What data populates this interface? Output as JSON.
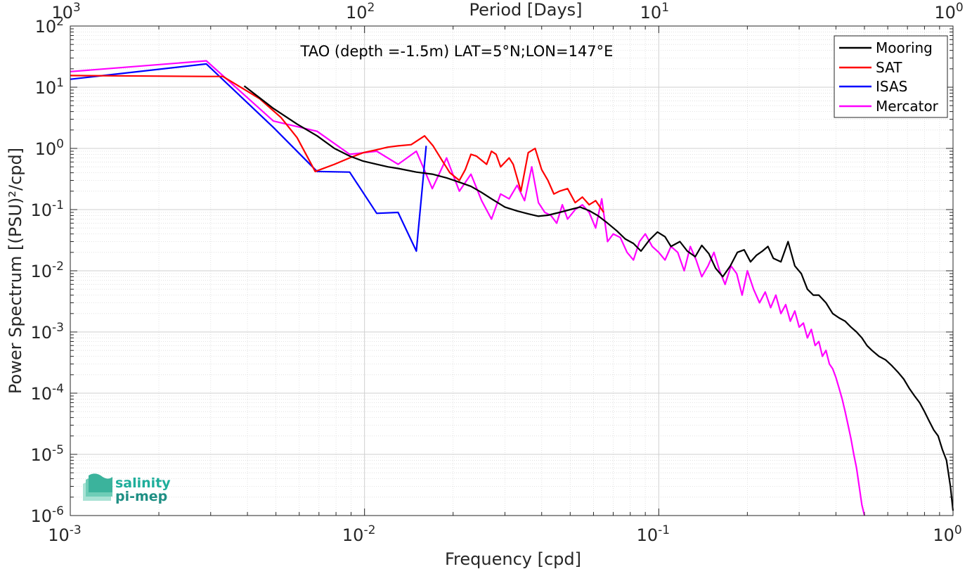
{
  "chart_data": {
    "type": "line",
    "title": "TAO (depth =-1.5m) LAT=5°N;LON=147°E",
    "xlabel": "Frequency [cpd]",
    "ylabel": "Power Spectrum [(PSU)²/cpd]",
    "x2label": "Period [Days]",
    "xscale": "log",
    "yscale": "log",
    "xlim": [
      0.001,
      1
    ],
    "ylim": [
      1e-06,
      100
    ],
    "grid": true,
    "legend_position": "top-right",
    "x_ticks": [
      {
        "value": 0.001,
        "base": "10",
        "exp": "-3"
      },
      {
        "value": 0.01,
        "base": "10",
        "exp": "-2"
      },
      {
        "value": 0.1,
        "base": "10",
        "exp": "-1"
      },
      {
        "value": 1,
        "base": "10",
        "exp": "0"
      }
    ],
    "x2_ticks": [
      {
        "value": 0.001,
        "base": "10",
        "exp": "3"
      },
      {
        "value": 0.01,
        "base": "10",
        "exp": "2"
      },
      {
        "value": 0.1,
        "base": "10",
        "exp": "1"
      },
      {
        "value": 1,
        "base": "10",
        "exp": "0"
      }
    ],
    "y_ticks": [
      {
        "value": 100,
        "base": "10",
        "exp": "2"
      },
      {
        "value": 10,
        "base": "10",
        "exp": "1"
      },
      {
        "value": 1,
        "base": "10",
        "exp": "0"
      },
      {
        "value": 0.1,
        "base": "10",
        "exp": "-1"
      },
      {
        "value": 0.01,
        "base": "10",
        "exp": "-2"
      },
      {
        "value": 0.001,
        "base": "10",
        "exp": "-3"
      },
      {
        "value": 0.0001,
        "base": "10",
        "exp": "-4"
      },
      {
        "value": 1e-05,
        "base": "10",
        "exp": "-5"
      },
      {
        "value": 1e-06,
        "base": "10",
        "exp": "-6"
      }
    ],
    "series": [
      {
        "name": "Mooring",
        "color": "#000000",
        "x": [
          0.0039,
          0.0049,
          0.0059,
          0.0069,
          0.0079,
          0.0089,
          0.0099,
          0.011,
          0.012,
          0.013,
          0.015,
          0.017,
          0.019,
          0.021,
          0.023,
          0.025,
          0.027,
          0.03,
          0.033,
          0.036,
          0.039,
          0.042,
          0.046,
          0.05,
          0.054,
          0.058,
          0.062,
          0.067,
          0.072,
          0.077,
          0.082,
          0.087,
          0.093,
          0.099,
          0.105,
          0.11,
          0.118,
          0.125,
          0.133,
          0.14,
          0.148,
          0.156,
          0.165,
          0.175,
          0.185,
          0.195,
          0.205,
          0.215,
          0.225,
          0.235,
          0.245,
          0.26,
          0.275,
          0.29,
          0.305,
          0.32,
          0.335,
          0.35,
          0.37,
          0.39,
          0.41,
          0.43,
          0.45,
          0.47,
          0.49,
          0.51,
          0.53,
          0.56,
          0.59,
          0.62,
          0.65,
          0.68,
          0.71,
          0.74,
          0.77,
          0.8,
          0.83,
          0.86,
          0.89,
          0.92,
          0.95,
          0.98,
          1.0
        ],
        "y": [
          10.5,
          4.5,
          2.5,
          1.6,
          1.0,
          0.75,
          0.62,
          0.55,
          0.5,
          0.47,
          0.41,
          0.38,
          0.33,
          0.28,
          0.24,
          0.19,
          0.15,
          0.11,
          0.095,
          0.085,
          0.078,
          0.081,
          0.09,
          0.1,
          0.11,
          0.096,
          0.08,
          0.06,
          0.045,
          0.033,
          0.028,
          0.021,
          0.032,
          0.043,
          0.036,
          0.025,
          0.03,
          0.021,
          0.017,
          0.026,
          0.019,
          0.011,
          0.008,
          0.012,
          0.02,
          0.022,
          0.014,
          0.018,
          0.021,
          0.025,
          0.016,
          0.014,
          0.03,
          0.012,
          0.009,
          0.005,
          0.004,
          0.004,
          0.003,
          0.002,
          0.0017,
          0.0015,
          0.0012,
          0.001,
          0.0008,
          0.0006,
          0.0005,
          0.0004,
          0.00035,
          0.00028,
          0.00022,
          0.00017,
          0.00012,
          9e-05,
          7e-05,
          5e-05,
          3.5e-05,
          2.5e-05,
          2e-05,
          1.2e-05,
          8e-06,
          3e-06,
          1.2e-06
        ]
      },
      {
        "name": "SAT",
        "color": "#ff0000",
        "x": [
          0.001,
          0.0029,
          0.0033,
          0.0044,
          0.0052,
          0.0059,
          0.0068,
          0.0079,
          0.0089,
          0.0099,
          0.011,
          0.012,
          0.013,
          0.0144,
          0.016,
          0.0171,
          0.0183,
          0.0195,
          0.021,
          0.022,
          0.023,
          0.024,
          0.026,
          0.027,
          0.028,
          0.029,
          0.031,
          0.032,
          0.034,
          0.036,
          0.038,
          0.04,
          0.042,
          0.044,
          0.046,
          0.049,
          0.052,
          0.055,
          0.058,
          0.061,
          0.065
        ],
        "y": [
          15.5,
          15.0,
          15.0,
          6.5,
          3.2,
          1.5,
          0.42,
          0.55,
          0.7,
          0.85,
          0.95,
          1.05,
          1.1,
          1.15,
          1.6,
          1.1,
          0.65,
          0.4,
          0.3,
          0.45,
          0.8,
          0.75,
          0.55,
          0.9,
          0.8,
          0.5,
          0.7,
          0.55,
          0.2,
          0.85,
          1.0,
          0.45,
          0.3,
          0.18,
          0.2,
          0.22,
          0.13,
          0.16,
          0.12,
          0.14,
          0.09
        ]
      },
      {
        "name": "ISAS",
        "color": "#0000ff",
        "x": [
          0.001,
          0.0029,
          0.0049,
          0.0069,
          0.0089,
          0.011,
          0.013,
          0.015,
          0.0162
        ],
        "y": [
          13.5,
          24.0,
          2.2,
          0.42,
          0.41,
          0.087,
          0.09,
          0.021,
          1.1
        ]
      },
      {
        "name": "Mercator",
        "color": "#ff00ff",
        "x": [
          0.001,
          0.0029,
          0.0049,
          0.0069,
          0.0089,
          0.011,
          0.013,
          0.015,
          0.017,
          0.019,
          0.021,
          0.023,
          0.025,
          0.027,
          0.029,
          0.031,
          0.033,
          0.035,
          0.037,
          0.039,
          0.041,
          0.043,
          0.045,
          0.047,
          0.049,
          0.052,
          0.055,
          0.058,
          0.061,
          0.064,
          0.067,
          0.07,
          0.074,
          0.078,
          0.082,
          0.086,
          0.09,
          0.095,
          0.1,
          0.105,
          0.11,
          0.116,
          0.122,
          0.128,
          0.134,
          0.14,
          0.147,
          0.154,
          0.161,
          0.168,
          0.176,
          0.184,
          0.192,
          0.2,
          0.21,
          0.22,
          0.23,
          0.24,
          0.25,
          0.26,
          0.27,
          0.28,
          0.29,
          0.3,
          0.31,
          0.32,
          0.33,
          0.34,
          0.35,
          0.36,
          0.37,
          0.38,
          0.39,
          0.4,
          0.41,
          0.42,
          0.43,
          0.44,
          0.45,
          0.46,
          0.47,
          0.48,
          0.49,
          0.5
        ],
        "y": [
          18.0,
          27.0,
          2.8,
          1.9,
          0.8,
          0.9,
          0.55,
          0.9,
          0.22,
          0.7,
          0.2,
          0.38,
          0.14,
          0.07,
          0.18,
          0.15,
          0.25,
          0.14,
          0.5,
          0.13,
          0.09,
          0.08,
          0.06,
          0.12,
          0.07,
          0.1,
          0.12,
          0.09,
          0.05,
          0.15,
          0.03,
          0.04,
          0.035,
          0.02,
          0.015,
          0.03,
          0.04,
          0.025,
          0.02,
          0.015,
          0.025,
          0.02,
          0.01,
          0.025,
          0.015,
          0.008,
          0.012,
          0.02,
          0.01,
          0.006,
          0.012,
          0.009,
          0.004,
          0.01,
          0.005,
          0.003,
          0.0045,
          0.0025,
          0.004,
          0.002,
          0.0028,
          0.0015,
          0.0022,
          0.0012,
          0.0014,
          0.0008,
          0.0011,
          0.0006,
          0.0007,
          0.0004,
          0.0005,
          0.0003,
          0.00025,
          0.00018,
          0.00012,
          8e-05,
          5e-05,
          3e-05,
          1.8e-05,
          1e-05,
          6e-06,
          3e-06,
          1.5e-06,
          1e-06
        ]
      }
    ]
  },
  "logo": {
    "line1": "salinity",
    "line2": "pi-mep"
  }
}
